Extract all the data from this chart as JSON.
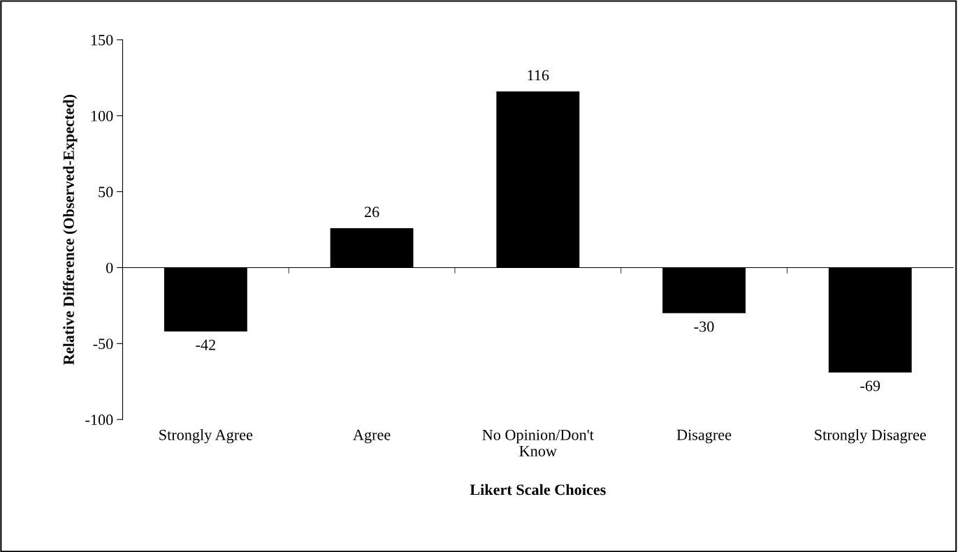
{
  "chart_data": {
    "type": "bar",
    "categories": [
      "Strongly Agree",
      "Agree",
      "No Opinion/Don't\nKnow",
      "Disagree",
      "Strongly Disagree"
    ],
    "values": [
      -42,
      26,
      116,
      -30,
      -69
    ],
    "color": "#000000",
    "xlabel": "Likert Scale Choices",
    "ylabel": "Relative Difference (Observed-Expected)",
    "ylim": [
      -100,
      150
    ],
    "yticks": [
      -100,
      -50,
      0,
      50,
      100,
      150
    ],
    "data_labels": true
  }
}
